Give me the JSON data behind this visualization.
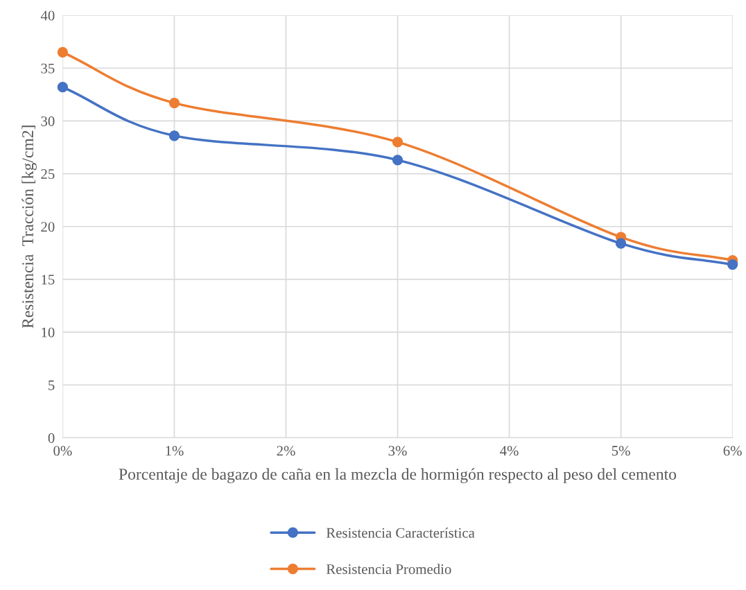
{
  "chart_data": {
    "type": "line",
    "xlabel": "Porcentaje de bagazo de caña en la mezcla de hormigón respecto al peso del cemento",
    "ylabel": "Resistencia  Tracción [kg/cm2]",
    "x": [
      0,
      1,
      3,
      5,
      6
    ],
    "series": [
      {
        "name": "Resistencia Característica",
        "color": "#4472c4",
        "values": [
          33.2,
          28.6,
          26.3,
          18.4,
          16.4
        ]
      },
      {
        "name": "Resistencia Promedio",
        "color": "#ed7d31",
        "values": [
          36.5,
          31.7,
          28.0,
          19.0,
          16.8
        ]
      }
    ],
    "xlim": [
      0,
      6
    ],
    "xticks": [
      {
        "value": 0,
        "label": "0%"
      },
      {
        "value": 1,
        "label": "1%"
      },
      {
        "value": 2,
        "label": "2%"
      },
      {
        "value": 3,
        "label": "3%"
      },
      {
        "value": 4,
        "label": "4%"
      },
      {
        "value": 5,
        "label": "5%"
      },
      {
        "value": 6,
        "label": "6%"
      }
    ],
    "ylim": [
      0,
      40
    ],
    "yticks": [
      0,
      5,
      10,
      15,
      20,
      25,
      30,
      35,
      40
    ],
    "grid": true,
    "legend": "bottom",
    "marker": "circle",
    "line_style": "solid"
  }
}
